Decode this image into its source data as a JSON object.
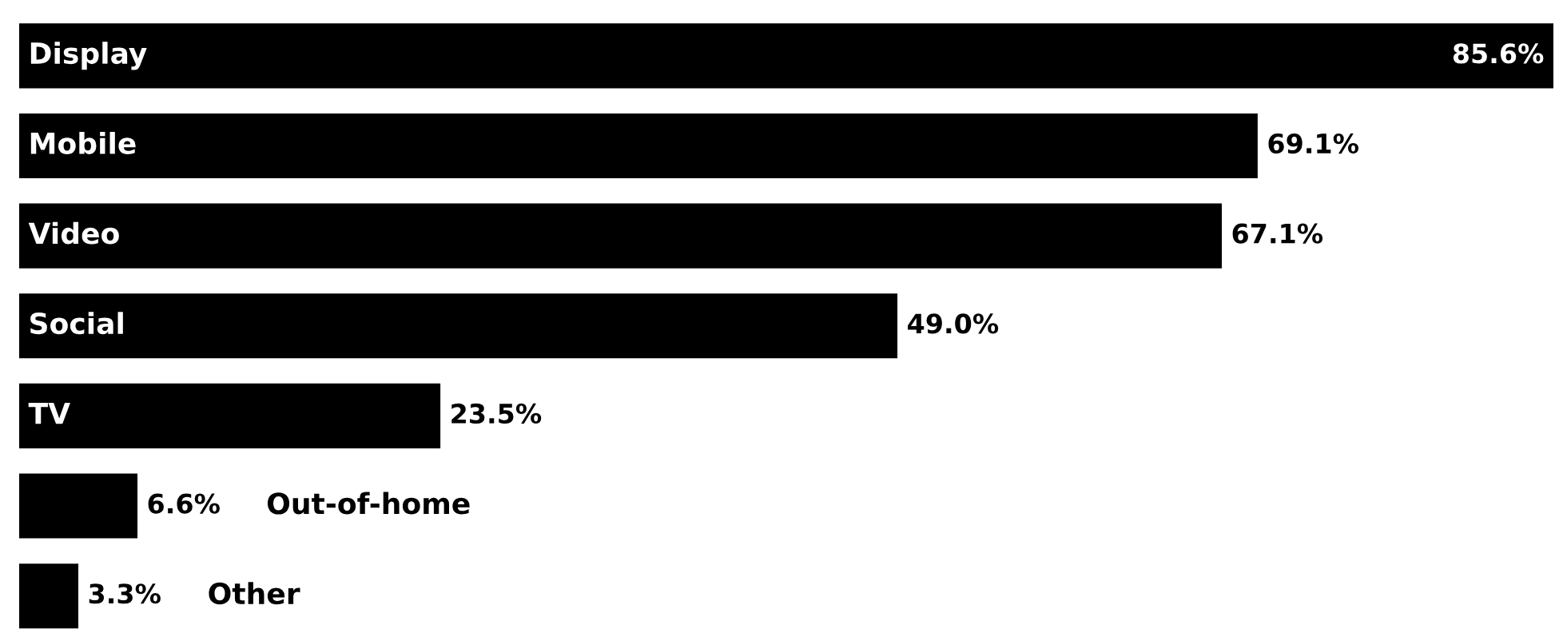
{
  "chart_data": {
    "type": "bar",
    "orientation": "horizontal",
    "categories": [
      "Display",
      "Mobile",
      "Video",
      "Social",
      "TV",
      "Out-of-home",
      "Other"
    ],
    "values": [
      85.6,
      69.1,
      67.1,
      49.0,
      23.5,
      6.6,
      3.3
    ],
    "value_labels": [
      "85.6%",
      "69.1%",
      "67.1%",
      "49.0%",
      "23.5%",
      "6.6%",
      "3.3%"
    ],
    "color": "#000000",
    "grid": false,
    "legend": false,
    "tick_labels": false
  }
}
